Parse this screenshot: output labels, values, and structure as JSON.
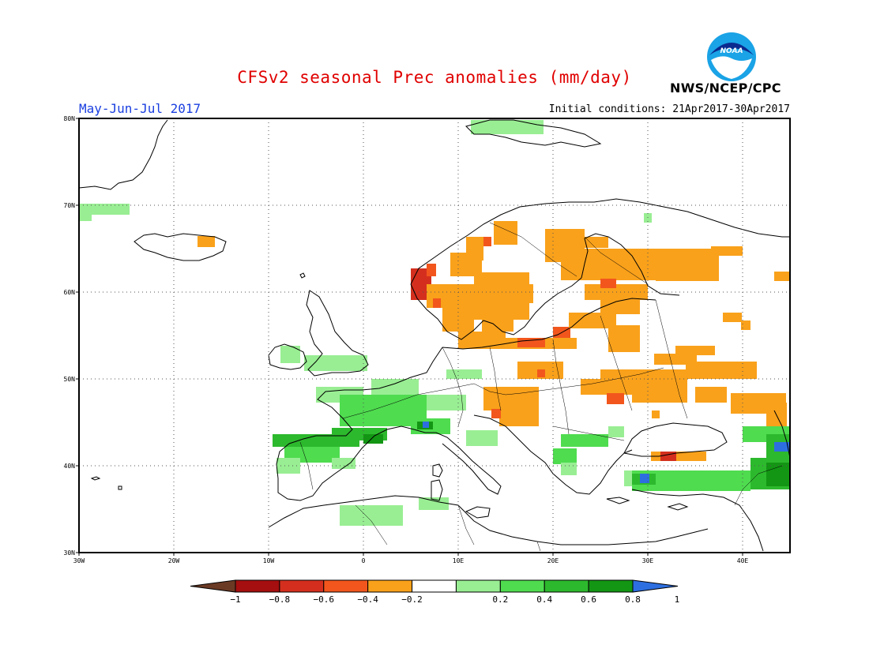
{
  "title": "CFSv2 seasonal Prec anomalies (mm/day)",
  "period": "May-Jun-Jul 2017",
  "initial_conditions": "Initial conditions: 21Apr2017-30Apr2017",
  "agency": "NWS/NCEP/CPC",
  "logo": {
    "name": "noaa-logo",
    "text": "NOAA"
  },
  "map": {
    "lon_range": [
      -30,
      45
    ],
    "lat_range": [
      30,
      80
    ],
    "lat_ticks": [
      "30N",
      "40N",
      "50N",
      "60N",
      "70N",
      "80N"
    ],
    "lon_ticks": [
      "30W",
      "20W",
      "10W",
      "0",
      "10E",
      "20E",
      "30E",
      "40E"
    ],
    "grid": "dotted"
  },
  "colorbar": {
    "labels": [
      "-1",
      "-0.8",
      "-0.6",
      "-0.4",
      "-0.2",
      "0.2",
      "0.4",
      "0.6",
      "0.8",
      "1"
    ],
    "colors": {
      "lt-1": "#6b3a24",
      "-1:-0.8": "#a50f0f",
      "-0.8:-0.6": "#d42f1e",
      "-0.6:-0.4": "#f2561d",
      "-0.4:-0.2": "#f9a11b",
      "-0.2:0.2": "#ffffff",
      "0.2:0.4": "#99ee93",
      "0.4:0.6": "#4fdc4f",
      "0.6:0.8": "#2db92d",
      "0.8:1": "#139613",
      "gt1": "#2d6fe0"
    }
  }
}
